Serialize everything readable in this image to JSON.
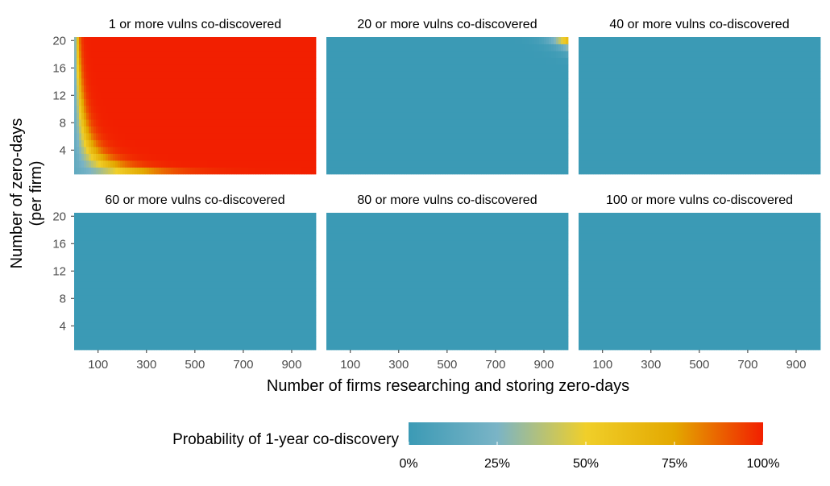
{
  "chart_data": {
    "type": "heatmap",
    "xlabel": "Number of firms researching and storing zero-days",
    "ylabel_lines": [
      "Number of zero-days",
      "(per firm)"
    ],
    "x_range": [
      1,
      1000
    ],
    "y_range": [
      1,
      20
    ],
    "x_ticks": [
      100,
      300,
      500,
      700,
      900
    ],
    "y_ticks": [
      4,
      8,
      12,
      16,
      20
    ],
    "grid": false,
    "panels": [
      {
        "title": "1 or more vulns co-discovered",
        "threshold": 1
      },
      {
        "title": "20 or more vulns co-discovered",
        "threshold": 20
      },
      {
        "title": "40 or more vulns co-discovered",
        "threshold": 40
      },
      {
        "title": "60 or more vulns co-discovered",
        "threshold": 60
      },
      {
        "title": "80 or more vulns co-discovered",
        "threshold": 80
      },
      {
        "title": "100 or more vulns co-discovered",
        "threshold": 100
      }
    ],
    "legend": {
      "title": "Probability of 1-year co-discovery",
      "position": "bottom",
      "ticks": [
        "0%",
        "25%",
        "50%",
        "75%",
        "100%"
      ],
      "tick_values": [
        0,
        0.25,
        0.5,
        0.75,
        1.0
      ],
      "color_stops": [
        {
          "value": 0.0,
          "color": "#3b9ab5"
        },
        {
          "value": 0.25,
          "color": "#7ab4c6"
        },
        {
          "value": 0.5,
          "color": "#f0cf2a"
        },
        {
          "value": 0.75,
          "color": "#e3a800"
        },
        {
          "value": 1.0,
          "color": "#f21f00"
        }
      ]
    }
  }
}
